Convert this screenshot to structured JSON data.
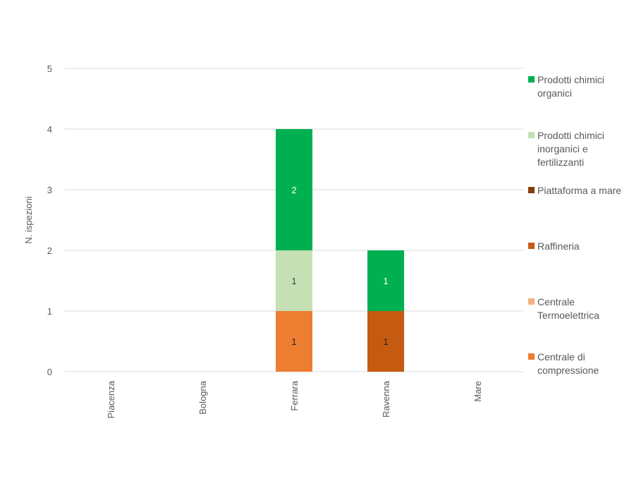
{
  "chart_data": {
    "type": "bar",
    "stacked": true,
    "title": "",
    "xlabel": "",
    "ylabel": "N. ispezioni",
    "ylim": [
      0,
      5
    ],
    "yticks": [
      0,
      1,
      2,
      3,
      4,
      5
    ],
    "grid": true,
    "legend_position": "right",
    "categories": [
      "Piacenza",
      "Bologna",
      "Ferrara",
      "Ravenna",
      "Mare"
    ],
    "series": [
      {
        "name": "Centrale di compressione",
        "color": "#ED7D31",
        "label_color": "#262626",
        "values": [
          0,
          0,
          1,
          0,
          0
        ]
      },
      {
        "name": "Centrale Termoelettrica",
        "color": "#F4B183",
        "label_color": "#262626",
        "values": [
          0,
          0,
          0,
          0,
          0
        ]
      },
      {
        "name": "Raffineria",
        "color": "#C55A11",
        "label_color": "#262626",
        "values": [
          0,
          0,
          0,
          1,
          0
        ]
      },
      {
        "name": "Piattaforma a mare",
        "color": "#843C0C",
        "label_color": "#ffffff",
        "values": [
          0,
          0,
          0,
          0,
          0
        ]
      },
      {
        "name": "Prodotti chimici inorganici e fertilizzanti",
        "color": "#C5E0B4",
        "label_color": "#404040",
        "values": [
          0,
          0,
          1,
          0,
          0
        ]
      },
      {
        "name": "Prodotti chimici organici",
        "color": "#00B050",
        "label_color": "#ffffff",
        "values": [
          0,
          0,
          2,
          1,
          0
        ]
      }
    ]
  }
}
